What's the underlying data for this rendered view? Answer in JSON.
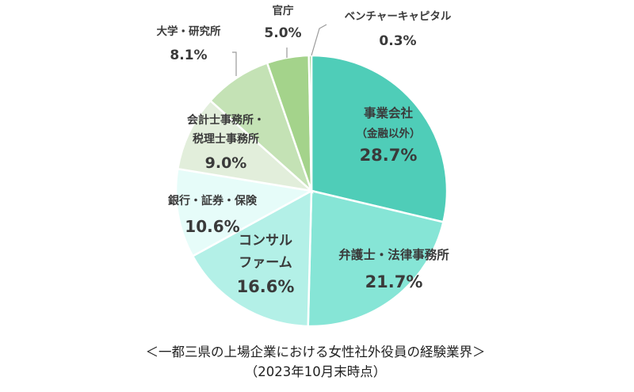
{
  "chart_data": {
    "type": "pie",
    "title": "＜一都三県の上場企業における女性社外役員の経験業界＞",
    "subtitle": "（2023年10月末時点）",
    "slices": [
      {
        "name": [
          "事業会社",
          "（金融以外）"
        ],
        "value_label": "28.7%",
        "value": 28.7,
        "color": "#4fcdb8"
      },
      {
        "name": [
          "弁護士・法律事務所"
        ],
        "value_label": "21.7%",
        "value": 21.7,
        "color": "#86e5d6"
      },
      {
        "name": [
          "コンサル",
          "ファーム"
        ],
        "value_label": "16.6%",
        "value": 16.6,
        "color": "#b3f0e7"
      },
      {
        "name": [
          "銀行・証券・保険"
        ],
        "value_label": "10.6%",
        "value": 10.6,
        "color": "#e6fcf9"
      },
      {
        "name": [
          "会計士事務所・",
          "税理士事務所"
        ],
        "value_label": "9.0%",
        "value": 9.0,
        "color": "#e2eedb"
      },
      {
        "name": [
          "大学・研究所"
        ],
        "value_label": "8.1%",
        "value": 8.1,
        "color": "#c4e2b5"
      },
      {
        "name": [
          "官庁"
        ],
        "value_label": "5.0%",
        "value": 5.0,
        "color": "#a4d38b"
      },
      {
        "name": [
          "ベンチャーキャピタル"
        ],
        "value_label": "0.3%",
        "value": 0.3,
        "color": "#6cbf55"
      }
    ]
  }
}
